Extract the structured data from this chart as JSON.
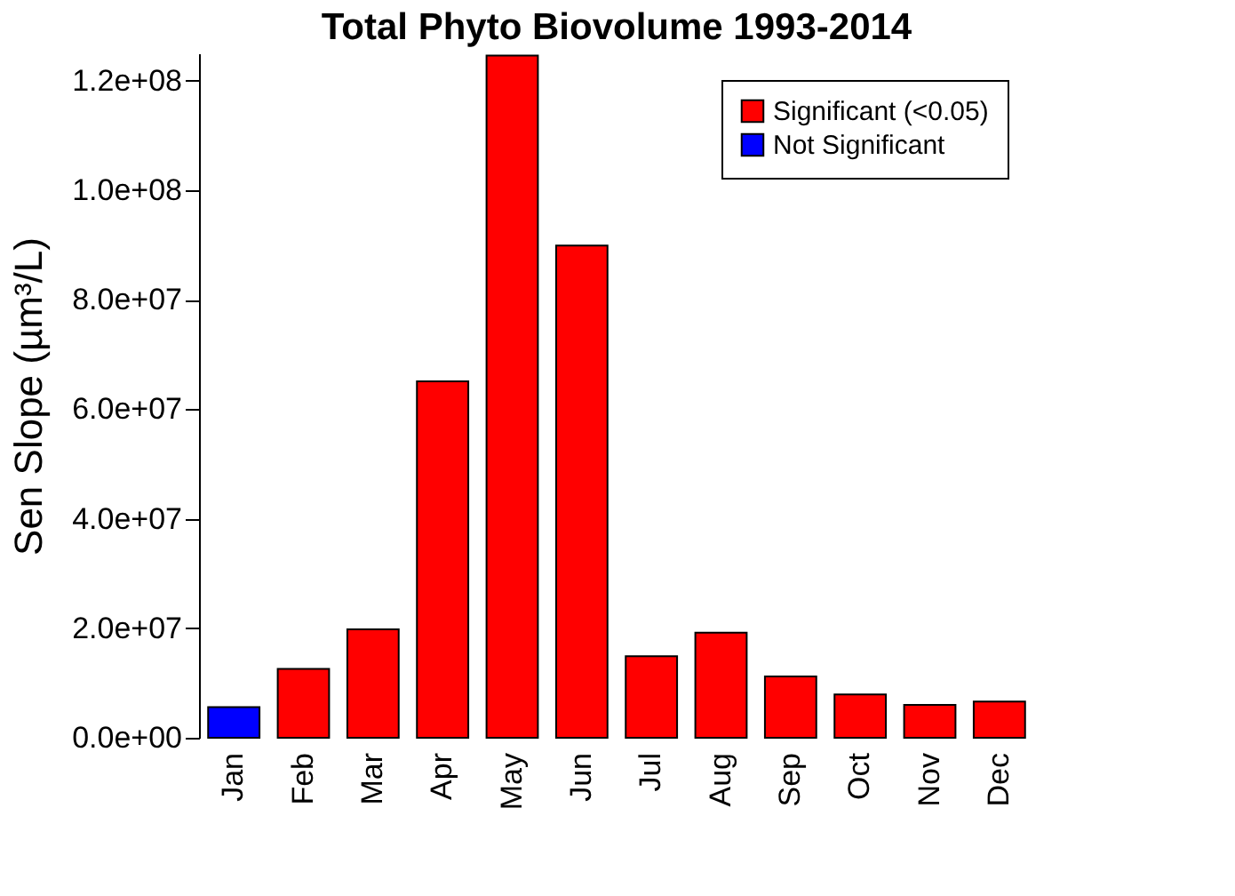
{
  "chart_data": {
    "type": "bar",
    "title": "Total Phyto Biovolume 1993-2014",
    "ylabel": "Sen Slope (µm³/L)",
    "categories": [
      "Jan",
      "Feb",
      "Mar",
      "Apr",
      "May",
      "Jun",
      "Jul",
      "Aug",
      "Sep",
      "Oct",
      "Nov",
      "Dec"
    ],
    "series": [
      {
        "name": "Significant (<0.05)",
        "color": "#ff0000",
        "values": [
          null,
          12600000,
          19800000,
          65100000,
          124600000,
          89900000,
          14900000,
          19200000,
          11200000,
          7900000,
          6000000,
          6600000
        ]
      },
      {
        "name": "Not Significant",
        "color": "#0000ff",
        "values": [
          5600000,
          null,
          null,
          null,
          null,
          null,
          null,
          null,
          null,
          null,
          null,
          null
        ]
      }
    ],
    "ylim": [
      0,
      125000000
    ],
    "yticks": [
      {
        "value": 0,
        "label": "0.0e+00"
      },
      {
        "value": 20000000,
        "label": "2.0e+07"
      },
      {
        "value": 40000000,
        "label": "4.0e+07"
      },
      {
        "value": 60000000,
        "label": "6.0e+07"
      },
      {
        "value": 80000000,
        "label": "8.0e+07"
      },
      {
        "value": 100000000,
        "label": "1.0e+08"
      },
      {
        "value": 120000000,
        "label": "1.2e+08"
      }
    ],
    "grid": false,
    "legend": "top right"
  }
}
